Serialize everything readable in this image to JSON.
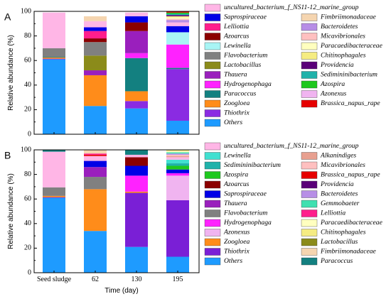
{
  "chart_data": [
    {
      "type": "bar",
      "stacked": true,
      "panel_label": "A",
      "ylabel": "Relative abundance (%)",
      "ylim": [
        0,
        100
      ],
      "yticks": [
        "0",
        "20",
        "40",
        "60",
        "80",
        "100"
      ],
      "categories": [
        "Seed sludge",
        "62",
        "130",
        "195"
      ],
      "series": [
        {
          "name": "Others",
          "color": "#1e9bff",
          "values": [
            61,
            23,
            21,
            11
          ]
        },
        {
          "name": "Thiothrix",
          "color": "#8a2be2",
          "values": [
            0.5,
            0,
            6,
            42
          ]
        },
        {
          "name": "Zoogloea",
          "color": "#ff8c1a",
          "values": [
            1,
            25,
            8,
            0
          ]
        },
        {
          "name": "Paracoccus",
          "color": "#138080",
          "values": [
            0.5,
            0,
            27,
            1
          ]
        },
        {
          "name": "Hydrogenophaga",
          "color": "#ff22ff",
          "values": [
            0,
            0,
            4,
            19
          ]
        },
        {
          "name": "Thauera",
          "color": "#9a1fbd",
          "values": [
            0,
            4,
            18,
            0
          ]
        },
        {
          "name": "Lactobacillus",
          "color": "#8b8b1a",
          "values": [
            0,
            12,
            0,
            0
          ]
        },
        {
          "name": "Flavobacterium",
          "color": "#808080",
          "values": [
            7,
            11,
            0,
            0
          ]
        },
        {
          "name": "Lewinella",
          "color": "#a8f5f5",
          "values": [
            0,
            0,
            0,
            10
          ]
        },
        {
          "name": "Azoarcus",
          "color": "#8b0000",
          "values": [
            0,
            3,
            7,
            0
          ]
        },
        {
          "name": "Lelliottia",
          "color": "#ff1e8c",
          "values": [
            0,
            6,
            0,
            0
          ]
        },
        {
          "name": "Saprospiraceae",
          "color": "#0000e6",
          "values": [
            0,
            3,
            5,
            5
          ]
        },
        {
          "name": "uncultured_bacterium_f_NS11-12_marine_group",
          "color": "#ffb6e6",
          "values": [
            29,
            5,
            3,
            3
          ]
        },
        {
          "name": "Fimbriimonadaceae",
          "color": "#f5d5b0",
          "values": [
            0,
            4,
            0,
            0
          ]
        },
        {
          "name": "Bacteroidetes",
          "color": "#b78ee6",
          "values": [
            0,
            0,
            0,
            2
          ]
        },
        {
          "name": "Micavibrionales",
          "color": "#ffc0c0",
          "values": [
            0,
            0,
            0,
            1
          ]
        },
        {
          "name": "Paracaedibacteraceae",
          "color": "#ffffbf",
          "values": [
            0,
            0,
            0,
            1
          ]
        },
        {
          "name": "Chitinophagales",
          "color": "#f5ec82",
          "values": [
            0,
            0,
            0,
            1
          ]
        },
        {
          "name": "Providencia",
          "color": "#5a0078",
          "values": [
            0,
            0,
            0,
            1
          ]
        },
        {
          "name": "Sedimininibacterium",
          "color": "#20b2aa",
          "values": [
            0,
            0,
            0,
            1
          ]
        },
        {
          "name": "Azospira",
          "color": "#1ec81e",
          "values": [
            0,
            0,
            0,
            1
          ]
        },
        {
          "name": "Azonexus",
          "color": "#f0b4f0",
          "values": [
            0,
            0,
            0,
            0
          ]
        },
        {
          "name": "Brassica_napus_rape",
          "color": "#e60000",
          "values": [
            0,
            0,
            0,
            1
          ]
        }
      ],
      "legend": {
        "rows": [
          [
            "uncultured_bacterium_f_NS11-12_marine_group"
          ],
          [
            "Saprospiraceae",
            "Fimbriimonadaceae"
          ],
          [
            "Lelliottia",
            "Bacteroidetes"
          ],
          [
            "Azoarcus",
            "Micavibrionales"
          ],
          [
            "Lewinella",
            "Paracaedibacteraceae"
          ],
          [
            "Flavobacterium",
            "Chitinophagales"
          ],
          [
            "Lactobacillus",
            "Providencia"
          ],
          [
            "Thauera",
            "Sedimininibacterium"
          ],
          [
            "Hydrogenophaga",
            "Azospira"
          ],
          [
            "Paracoccus",
            "Azonexus"
          ],
          [
            "Zoogloea",
            "Brassica_napus_rape"
          ],
          [
            "Thiothrix"
          ],
          [
            "Others"
          ]
        ]
      }
    },
    {
      "type": "bar",
      "stacked": true,
      "panel_label": "B",
      "xlabel": "Time (day)",
      "ylabel": "Relative abundance (%)",
      "ylim": [
        0,
        100
      ],
      "yticks": [
        "0",
        "20",
        "40",
        "60",
        "80",
        "100"
      ],
      "categories": [
        "Seed sludge",
        "62",
        "130",
        "195"
      ],
      "series": [
        {
          "name": "Others",
          "color": "#1e9bff",
          "values": [
            61,
            34,
            21,
            13
          ]
        },
        {
          "name": "Thiothrix",
          "color": "#7a1fd6",
          "values": [
            0.5,
            0,
            44,
            46
          ]
        },
        {
          "name": "Zoogloea",
          "color": "#ff8c1a",
          "values": [
            1,
            34,
            1,
            0
          ]
        },
        {
          "name": "Azonexus",
          "color": "#f0b4f0",
          "values": [
            0,
            0,
            0,
            20
          ]
        },
        {
          "name": "Hydrogenophaga",
          "color": "#ff22ff",
          "values": [
            0,
            0,
            13,
            2
          ]
        },
        {
          "name": "Flavobacterium",
          "color": "#808080",
          "values": [
            7,
            10,
            0,
            0
          ]
        },
        {
          "name": "Thauera",
          "color": "#9a1fbd",
          "values": [
            0,
            8,
            0,
            0
          ]
        },
        {
          "name": "Saprospiraceae",
          "color": "#0000e6",
          "values": [
            0,
            5,
            8,
            3
          ]
        },
        {
          "name": "Azoarcus",
          "color": "#8b0000",
          "values": [
            0,
            0,
            7,
            0
          ]
        },
        {
          "name": "Azospira",
          "color": "#1ec81e",
          "values": [
            0,
            0,
            0,
            3
          ]
        },
        {
          "name": "Sedimininibacterium",
          "color": "#20b2aa",
          "values": [
            0,
            0,
            0,
            2
          ]
        },
        {
          "name": "Lewinella",
          "color": "#40e0d0",
          "values": [
            0,
            0,
            0,
            3
          ]
        },
        {
          "name": "uncultured_bacterium_f_NS11-12_marine_group",
          "color": "#ffb6e6",
          "values": [
            29,
            4,
            2,
            2
          ]
        },
        {
          "name": "Alkanindiges",
          "color": "#e8a090",
          "values": [
            0,
            0,
            0,
            1
          ]
        },
        {
          "name": "Micavibrionales",
          "color": "#ffc0c0",
          "values": [
            0,
            0,
            0,
            1
          ]
        },
        {
          "name": "Brassica_napus_rape",
          "color": "#e60000",
          "values": [
            0,
            1,
            0,
            0
          ]
        },
        {
          "name": "Providencia",
          "color": "#5a0078",
          "values": [
            0,
            0,
            0,
            0
          ]
        },
        {
          "name": "Bacteroidetes",
          "color": "#b78ee6",
          "values": [
            0,
            0,
            0,
            1
          ]
        },
        {
          "name": "Gemmobaeter",
          "color": "#40e0b0",
          "values": [
            0,
            0,
            0,
            1
          ]
        },
        {
          "name": "Lelliottia",
          "color": "#ff1e8c",
          "values": [
            0,
            1,
            0,
            0
          ]
        },
        {
          "name": "Paracaedibacteraceae",
          "color": "#ffffbf",
          "values": [
            0,
            0,
            0,
            1
          ]
        },
        {
          "name": "Chitinophagales",
          "color": "#f5ec82",
          "values": [
            0,
            0,
            0,
            1
          ]
        },
        {
          "name": "Lactobacillus",
          "color": "#8b8b1a",
          "values": [
            0,
            0,
            0,
            0
          ]
        },
        {
          "name": "Fimbriimonadaceae",
          "color": "#f5d5b0",
          "values": [
            0,
            3,
            0,
            0
          ]
        },
        {
          "name": "Paracoccus",
          "color": "#138080",
          "values": [
            1.5,
            0,
            4,
            0
          ]
        }
      ],
      "legend": {
        "rows": [
          [
            "uncultured_bacterium_f_NS11-12_marine_group"
          ],
          [
            "Lewinella",
            "Alkanindiges"
          ],
          [
            "Sedimininibacterium",
            "Micavibrionales"
          ],
          [
            "Azospira",
            "Brassica_napus_rape"
          ],
          [
            "Azoarcus",
            "Providencia"
          ],
          [
            "Saprospiraceae",
            "Bacteroidetes"
          ],
          [
            "Thauera",
            "Gemmobaeter"
          ],
          [
            "Flavobacterium",
            "Lelliottia"
          ],
          [
            "Hydrogenophaga",
            "Paracaedibacteraceae"
          ],
          [
            "Azonexus",
            "Chitinophagales"
          ],
          [
            "Zoogloea",
            "Lactobacillus"
          ],
          [
            "Thiothrix",
            "Fimbriimonadaceae"
          ],
          [
            "Others",
            "Paracoccus"
          ]
        ]
      }
    }
  ]
}
